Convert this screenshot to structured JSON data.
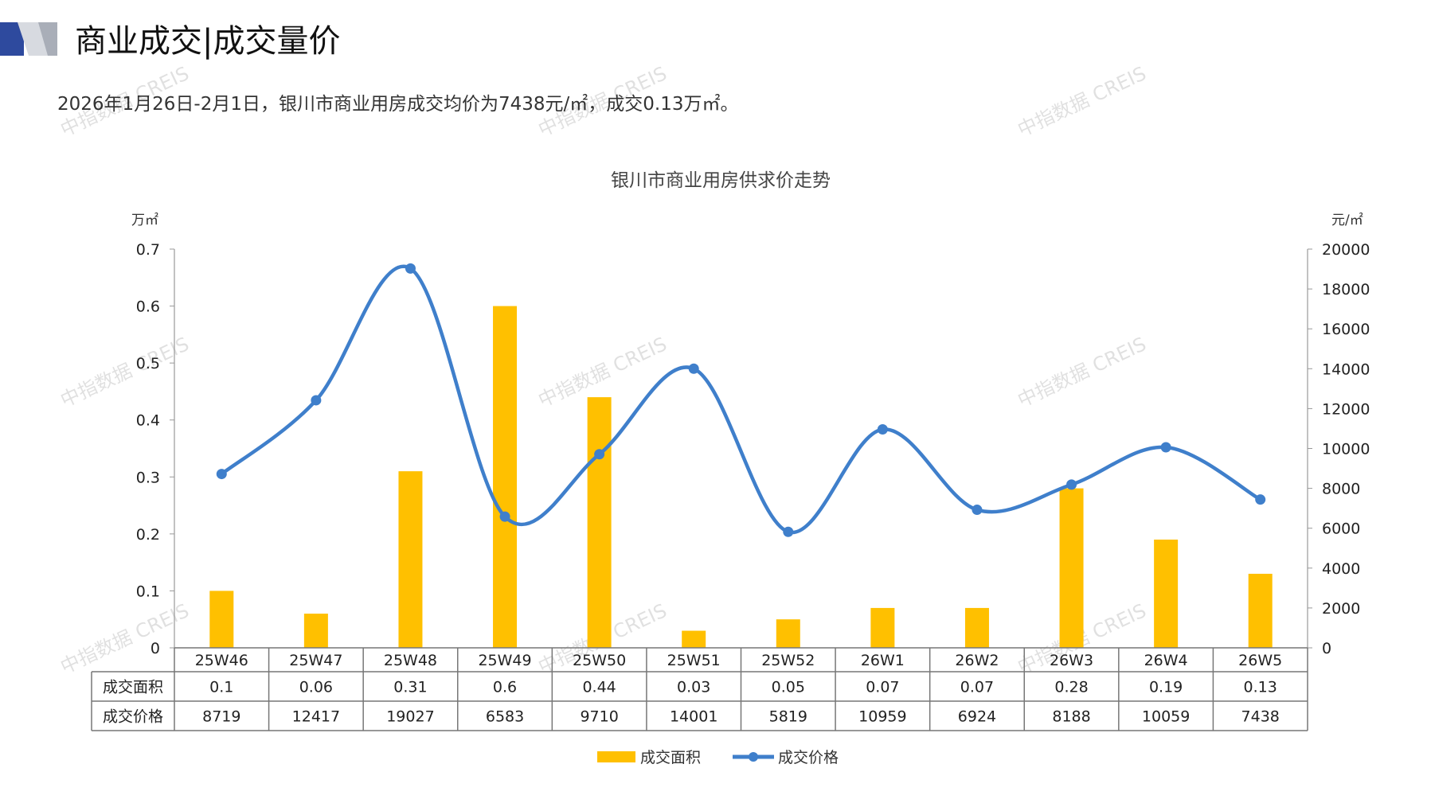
{
  "header": {
    "title": "商业成交|成交量价",
    "summary": "2026年1月26日-2月1日，银川市商业用房成交均价为7438元/㎡，成交0.13万㎡。"
  },
  "watermark": "中指数据 CREIS",
  "colors": {
    "bar": "#FFC000",
    "line": "#3F7FCB",
    "accent": "#2E4A9E",
    "text": "#222222",
    "grid": "#888888"
  },
  "chart_data": {
    "type": "bar+line",
    "title": "银川市商业用房供求价走势",
    "left_unit": "万㎡",
    "right_unit": "元/㎡",
    "categories": [
      "25W46",
      "25W47",
      "25W48",
      "25W49",
      "25W50",
      "25W51",
      "25W52",
      "26W1",
      "26W2",
      "26W3",
      "26W4",
      "26W5"
    ],
    "left_axis": {
      "min": 0,
      "max": 0.7,
      "ticks": [
        "0",
        "0.1",
        "0.2",
        "0.3",
        "0.4",
        "0.5",
        "0.6",
        "0.7"
      ]
    },
    "right_axis": {
      "min": 0,
      "max": 20000,
      "ticks": [
        "0",
        "2000",
        "4000",
        "6000",
        "8000",
        "10000",
        "12000",
        "14000",
        "16000",
        "18000",
        "20000"
      ]
    },
    "series": [
      {
        "name": "成交面积",
        "type": "bar",
        "axis": "left",
        "values": [
          0.1,
          0.06,
          0.31,
          0.6,
          0.44,
          0.03,
          0.05,
          0.07,
          0.07,
          0.28,
          0.19,
          0.13
        ],
        "labels": [
          "0.1",
          "0.06",
          "0.31",
          "0.6",
          "0.44",
          "0.03",
          "0.05",
          "0.07",
          "0.07",
          "0.28",
          "0.19",
          "0.13"
        ]
      },
      {
        "name": "成交价格",
        "type": "line",
        "axis": "right",
        "values": [
          8719,
          12417,
          19027,
          6583,
          9710,
          14001,
          5819,
          10959,
          6924,
          8188,
          10059,
          7438
        ],
        "labels": [
          "8719",
          "12417",
          "19027",
          "6583",
          "9710",
          "14001",
          "5819",
          "10959",
          "6924",
          "8188",
          "10059",
          "7438"
        ]
      }
    ],
    "legend": "bottom",
    "data_table": true
  }
}
